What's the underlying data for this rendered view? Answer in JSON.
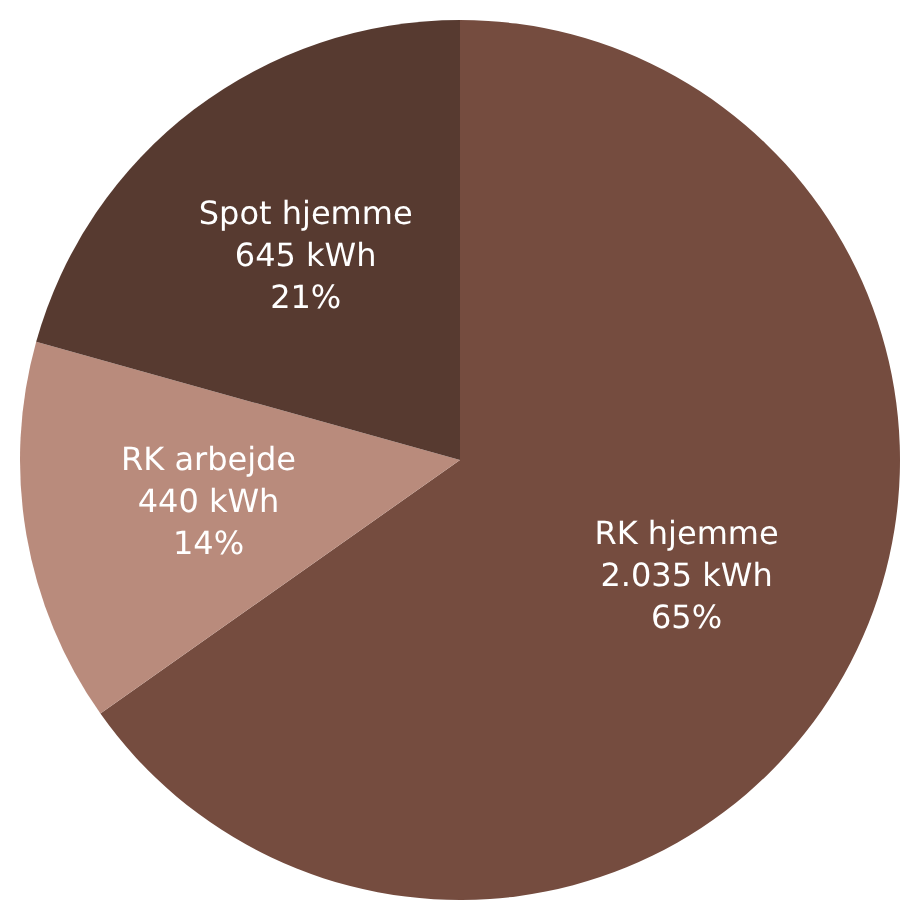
{
  "chart_data": {
    "type": "pie",
    "categories": [
      "RK hjemme",
      "RK arbejde",
      "Spot hjemme"
    ],
    "values": [
      2035,
      440,
      645
    ],
    "colors": [
      "#754c3f",
      "#b98b7c",
      "#573a30"
    ],
    "value_labels": [
      "2.035 kWh\n65%",
      "440 kWh\n14%",
      "645 kWh\n21%"
    ],
    "legend": false
  }
}
